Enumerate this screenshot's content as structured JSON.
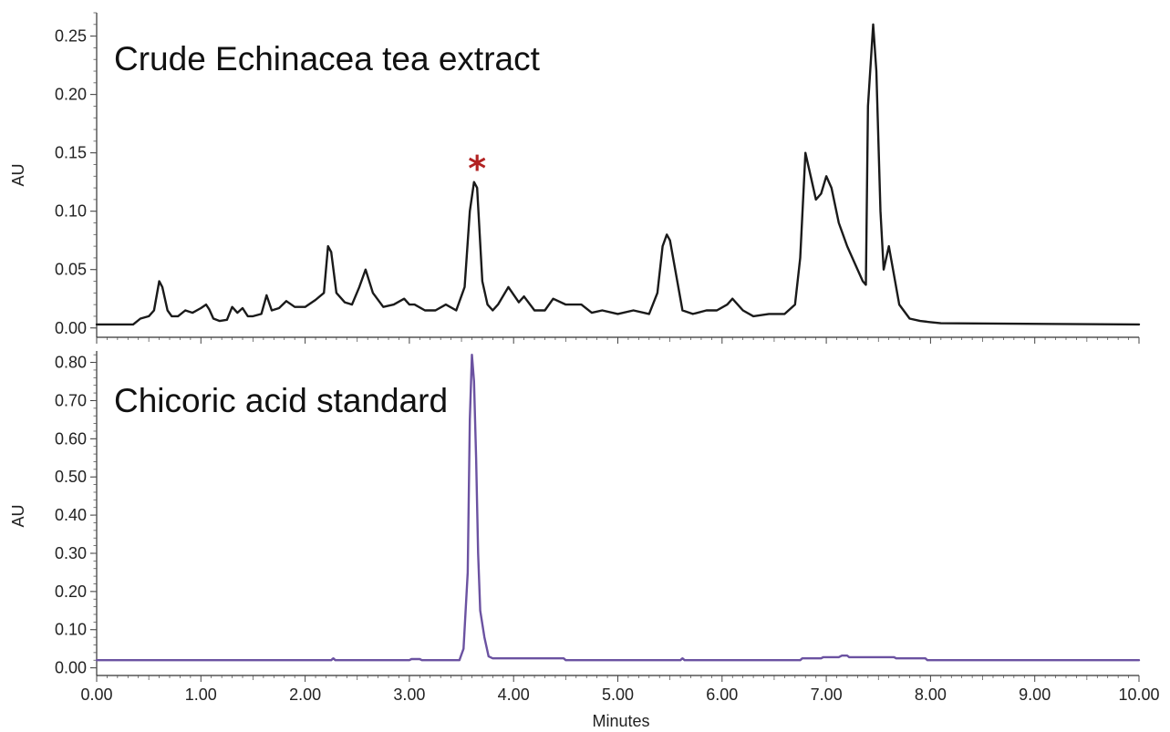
{
  "chart_data": [
    {
      "type": "line",
      "title": "Crude Echinacea tea extract",
      "xlabel": "",
      "ylabel": "AU",
      "xlim": [
        0,
        10
      ],
      "ylim": [
        -0.008,
        0.27
      ],
      "yticks": [
        "0.00",
        "0.05",
        "0.10",
        "0.15",
        "0.20",
        "0.25"
      ],
      "annotation": {
        "text": "*",
        "x": 3.65,
        "y": 0.142,
        "color": "#b22222"
      },
      "series": [
        {
          "color": "#1a1a1a",
          "x": [
            0,
            0.35,
            0.42,
            0.5,
            0.55,
            0.6,
            0.63,
            0.68,
            0.72,
            0.78,
            0.85,
            0.92,
            1.0,
            1.05,
            1.08,
            1.12,
            1.18,
            1.25,
            1.3,
            1.35,
            1.4,
            1.45,
            1.5,
            1.58,
            1.63,
            1.68,
            1.75,
            1.82,
            1.9,
            2.0,
            2.1,
            2.18,
            2.22,
            2.25,
            2.3,
            2.38,
            2.45,
            2.52,
            2.58,
            2.65,
            2.75,
            2.85,
            2.95,
            3.0,
            3.05,
            3.15,
            3.25,
            3.35,
            3.45,
            3.53,
            3.58,
            3.62,
            3.65,
            3.7,
            3.75,
            3.8,
            3.85,
            3.95,
            4.05,
            4.1,
            4.2,
            4.3,
            4.38,
            4.5,
            4.65,
            4.75,
            4.85,
            5.0,
            5.15,
            5.3,
            5.38,
            5.43,
            5.47,
            5.5,
            5.55,
            5.62,
            5.72,
            5.85,
            5.95,
            6.05,
            6.1,
            6.2,
            6.3,
            6.45,
            6.6,
            6.7,
            6.75,
            6.8,
            6.85,
            6.9,
            6.95,
            7.0,
            7.05,
            7.12,
            7.2,
            7.3,
            7.35,
            7.38,
            7.4,
            7.45,
            7.48,
            7.52,
            7.55,
            7.6,
            7.7,
            7.8,
            7.9,
            8.0,
            8.1,
            10.0
          ],
          "y": [
            0.003,
            0.003,
            0.008,
            0.01,
            0.015,
            0.04,
            0.035,
            0.015,
            0.01,
            0.01,
            0.015,
            0.013,
            0.017,
            0.02,
            0.016,
            0.008,
            0.006,
            0.007,
            0.018,
            0.013,
            0.017,
            0.01,
            0.01,
            0.012,
            0.028,
            0.015,
            0.017,
            0.023,
            0.018,
            0.018,
            0.024,
            0.03,
            0.07,
            0.065,
            0.03,
            0.022,
            0.02,
            0.035,
            0.05,
            0.03,
            0.018,
            0.02,
            0.025,
            0.02,
            0.02,
            0.015,
            0.015,
            0.02,
            0.015,
            0.035,
            0.1,
            0.125,
            0.12,
            0.04,
            0.02,
            0.015,
            0.02,
            0.035,
            0.022,
            0.027,
            0.015,
            0.015,
            0.025,
            0.02,
            0.02,
            0.013,
            0.015,
            0.012,
            0.015,
            0.012,
            0.03,
            0.07,
            0.08,
            0.075,
            0.05,
            0.015,
            0.012,
            0.015,
            0.015,
            0.02,
            0.025,
            0.015,
            0.01,
            0.012,
            0.012,
            0.02,
            0.06,
            0.15,
            0.13,
            0.11,
            0.115,
            0.13,
            0.12,
            0.09,
            0.07,
            0.05,
            0.04,
            0.037,
            0.19,
            0.26,
            0.22,
            0.1,
            0.05,
            0.07,
            0.02,
            0.008,
            0.006,
            0.005,
            0.004,
            0.003
          ]
        }
      ]
    },
    {
      "type": "line",
      "title": "Chicoric acid standard",
      "xlabel": "Minutes",
      "ylabel": "AU",
      "xlim": [
        0,
        10
      ],
      "ylim": [
        -0.02,
        0.83
      ],
      "yticks": [
        "0.00",
        "0.10",
        "0.20",
        "0.30",
        "0.40",
        "0.50",
        "0.60",
        "0.70",
        "0.80"
      ],
      "xticks": [
        "0.00",
        "1.00",
        "2.00",
        "3.00",
        "4.00",
        "5.00",
        "6.00",
        "7.00",
        "8.00",
        "9.00",
        "10.00"
      ],
      "series": [
        {
          "color": "#6b52a1",
          "x": [
            0,
            2.25,
            2.27,
            2.29,
            3.0,
            3.02,
            3.1,
            3.12,
            3.48,
            3.52,
            3.56,
            3.58,
            3.6,
            3.62,
            3.64,
            3.66,
            3.68,
            3.72,
            3.76,
            3.8,
            4.48,
            4.5,
            5.6,
            5.62,
            5.64,
            6.75,
            6.77,
            6.95,
            6.97,
            7.12,
            7.15,
            7.2,
            7.22,
            7.65,
            7.67,
            7.95,
            7.97,
            10.0
          ],
          "y": [
            0.02,
            0.02,
            0.025,
            0.02,
            0.02,
            0.023,
            0.023,
            0.02,
            0.02,
            0.05,
            0.25,
            0.65,
            0.82,
            0.75,
            0.55,
            0.3,
            0.15,
            0.08,
            0.03,
            0.025,
            0.025,
            0.02,
            0.02,
            0.025,
            0.02,
            0.02,
            0.025,
            0.025,
            0.028,
            0.028,
            0.032,
            0.032,
            0.028,
            0.028,
            0.025,
            0.025,
            0.02,
            0.02
          ]
        }
      ]
    }
  ]
}
